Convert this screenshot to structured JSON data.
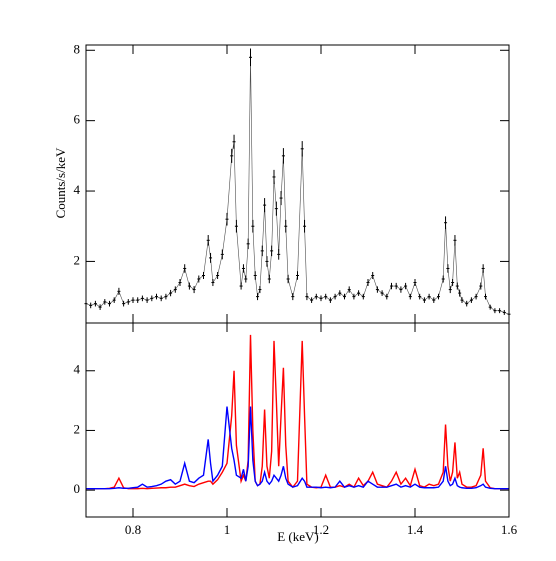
{
  "chart_data": [
    {
      "type": "line",
      "ylabel": "Counts/s/keV",
      "x": [
        0.7,
        0.71,
        0.72,
        0.73,
        0.74,
        0.75,
        0.76,
        0.77,
        0.78,
        0.79,
        0.8,
        0.81,
        0.82,
        0.83,
        0.84,
        0.85,
        0.86,
        0.87,
        0.88,
        0.89,
        0.9,
        0.91,
        0.92,
        0.93,
        0.94,
        0.95,
        0.96,
        0.965,
        0.97,
        0.98,
        0.99,
        1.0,
        1.01,
        1.015,
        1.02,
        1.03,
        1.035,
        1.04,
        1.045,
        1.05,
        1.055,
        1.06,
        1.065,
        1.07,
        1.075,
        1.08,
        1.085,
        1.09,
        1.095,
        1.1,
        1.105,
        1.11,
        1.115,
        1.12,
        1.125,
        1.13,
        1.14,
        1.15,
        1.16,
        1.165,
        1.17,
        1.18,
        1.19,
        1.2,
        1.21,
        1.22,
        1.23,
        1.24,
        1.25,
        1.26,
        1.27,
        1.28,
        1.29,
        1.3,
        1.31,
        1.32,
        1.33,
        1.34,
        1.35,
        1.36,
        1.37,
        1.38,
        1.39,
        1.4,
        1.41,
        1.42,
        1.43,
        1.44,
        1.45,
        1.46,
        1.465,
        1.47,
        1.475,
        1.48,
        1.485,
        1.49,
        1.495,
        1.5,
        1.51,
        1.52,
        1.53,
        1.54,
        1.545,
        1.55,
        1.56,
        1.57,
        1.58,
        1.59,
        1.6
      ],
      "series": [
        {
          "color": "#000000",
          "values": [
            0.8,
            0.75,
            0.8,
            0.7,
            0.85,
            0.8,
            0.9,
            1.15,
            0.8,
            0.85,
            0.9,
            0.9,
            0.95,
            0.9,
            0.95,
            1.0,
            0.95,
            1.0,
            1.1,
            1.2,
            1.4,
            1.8,
            1.3,
            1.2,
            1.5,
            1.6,
            2.6,
            2.1,
            1.4,
            1.6,
            2.2,
            3.2,
            5.0,
            5.4,
            3.0,
            1.3,
            1.8,
            1.5,
            2.5,
            7.8,
            3.0,
            1.6,
            1.0,
            1.2,
            2.3,
            3.6,
            2.0,
            1.5,
            2.3,
            4.4,
            3.5,
            2.2,
            3.8,
            5.0,
            3.0,
            1.5,
            1.0,
            1.6,
            5.2,
            3.0,
            1.0,
            0.9,
            1.0,
            0.95,
            1.0,
            0.9,
            1.0,
            1.1,
            1.0,
            1.2,
            1.0,
            1.1,
            1.0,
            1.4,
            1.6,
            1.2,
            1.1,
            1.0,
            1.3,
            1.3,
            1.2,
            1.3,
            1.0,
            1.4,
            1.0,
            0.9,
            1.0,
            0.9,
            1.0,
            1.5,
            3.1,
            1.8,
            1.2,
            1.4,
            2.6,
            1.3,
            1.1,
            0.9,
            0.8,
            0.9,
            1.0,
            1.3,
            1.8,
            1.0,
            0.7,
            0.6,
            0.6,
            0.55,
            0.5
          ],
          "errors": [
            0.08,
            0.08,
            0.08,
            0.08,
            0.08,
            0.08,
            0.08,
            0.1,
            0.08,
            0.08,
            0.08,
            0.08,
            0.08,
            0.08,
            0.08,
            0.08,
            0.08,
            0.08,
            0.09,
            0.09,
            0.1,
            0.12,
            0.1,
            0.1,
            0.1,
            0.1,
            0.15,
            0.14,
            0.1,
            0.1,
            0.14,
            0.18,
            0.2,
            0.2,
            0.18,
            0.1,
            0.12,
            0.1,
            0.15,
            0.25,
            0.18,
            0.12,
            0.1,
            0.1,
            0.15,
            0.2,
            0.15,
            0.12,
            0.15,
            0.2,
            0.2,
            0.15,
            0.2,
            0.22,
            0.18,
            0.12,
            0.1,
            0.12,
            0.22,
            0.18,
            0.1,
            0.08,
            0.08,
            0.08,
            0.08,
            0.08,
            0.08,
            0.08,
            0.08,
            0.09,
            0.08,
            0.08,
            0.08,
            0.1,
            0.1,
            0.09,
            0.08,
            0.08,
            0.09,
            0.09,
            0.09,
            0.09,
            0.08,
            0.1,
            0.08,
            0.08,
            0.08,
            0.08,
            0.08,
            0.1,
            0.18,
            0.12,
            0.1,
            0.1,
            0.15,
            0.1,
            0.1,
            0.08,
            0.08,
            0.08,
            0.08,
            0.1,
            0.12,
            0.08,
            0.07,
            0.07,
            0.07,
            0.07,
            0.07
          ]
        }
      ],
      "xlim": [
        0.7,
        1.6
      ],
      "ylim": [
        0.25,
        8.15
      ],
      "xticks": [
        0.8,
        1,
        1.2,
        1.4,
        1.6
      ],
      "yticks": [
        2,
        4,
        6,
        8
      ]
    },
    {
      "type": "line",
      "xlabel": "E (keV)",
      "x": [
        0.7,
        0.71,
        0.72,
        0.73,
        0.74,
        0.75,
        0.76,
        0.77,
        0.78,
        0.79,
        0.8,
        0.81,
        0.82,
        0.83,
        0.84,
        0.85,
        0.86,
        0.87,
        0.88,
        0.89,
        0.9,
        0.91,
        0.92,
        0.93,
        0.94,
        0.95,
        0.96,
        0.965,
        0.97,
        0.98,
        0.99,
        1.0,
        1.01,
        1.015,
        1.02,
        1.03,
        1.035,
        1.04,
        1.045,
        1.05,
        1.055,
        1.06,
        1.065,
        1.07,
        1.075,
        1.08,
        1.085,
        1.09,
        1.095,
        1.1,
        1.105,
        1.11,
        1.115,
        1.12,
        1.125,
        1.13,
        1.14,
        1.15,
        1.16,
        1.165,
        1.17,
        1.18,
        1.19,
        1.2,
        1.21,
        1.22,
        1.23,
        1.24,
        1.25,
        1.26,
        1.27,
        1.28,
        1.29,
        1.3,
        1.31,
        1.32,
        1.33,
        1.34,
        1.35,
        1.36,
        1.37,
        1.38,
        1.39,
        1.4,
        1.41,
        1.42,
        1.43,
        1.44,
        1.45,
        1.46,
        1.465,
        1.47,
        1.475,
        1.48,
        1.485,
        1.49,
        1.495,
        1.5,
        1.51,
        1.52,
        1.53,
        1.54,
        1.545,
        1.55,
        1.56,
        1.57,
        1.58,
        1.59,
        1.6
      ],
      "series": [
        {
          "color": "#ff0000",
          "values": [
            0.05,
            0.05,
            0.05,
            0.05,
            0.05,
            0.06,
            0.1,
            0.4,
            0.08,
            0.05,
            0.05,
            0.05,
            0.06,
            0.05,
            0.06,
            0.07,
            0.08,
            0.08,
            0.1,
            0.1,
            0.15,
            0.2,
            0.15,
            0.12,
            0.2,
            0.25,
            0.3,
            0.3,
            0.2,
            0.35,
            0.6,
            0.9,
            2.5,
            4.0,
            1.5,
            0.3,
            0.5,
            0.3,
            1.0,
            5.2,
            2.0,
            0.3,
            0.15,
            0.2,
            0.8,
            2.7,
            0.8,
            0.4,
            1.3,
            5.0,
            3.0,
            0.8,
            2.5,
            4.1,
            1.5,
            0.3,
            0.1,
            0.3,
            5.0,
            2.5,
            0.2,
            0.1,
            0.08,
            0.1,
            0.5,
            0.1,
            0.1,
            0.15,
            0.1,
            0.2,
            0.1,
            0.4,
            0.15,
            0.3,
            0.6,
            0.2,
            0.15,
            0.1,
            0.3,
            0.6,
            0.2,
            0.4,
            0.15,
            0.7,
            0.15,
            0.1,
            0.2,
            0.15,
            0.2,
            0.6,
            2.2,
            0.8,
            0.3,
            0.6,
            1.6,
            0.4,
            0.6,
            0.2,
            0.1,
            0.1,
            0.15,
            0.5,
            1.4,
            0.3,
            0.08,
            0.05,
            0.05,
            0.05,
            0.05
          ]
        },
        {
          "color": "#0000ff",
          "values": [
            0.05,
            0.05,
            0.05,
            0.05,
            0.05,
            0.05,
            0.06,
            0.08,
            0.06,
            0.06,
            0.08,
            0.1,
            0.2,
            0.1,
            0.12,
            0.15,
            0.2,
            0.3,
            0.35,
            0.2,
            0.3,
            0.9,
            0.3,
            0.25,
            0.4,
            0.5,
            1.7,
            0.9,
            0.3,
            0.5,
            0.8,
            2.8,
            1.4,
            1.0,
            0.5,
            0.4,
            0.7,
            0.3,
            0.8,
            2.8,
            1.0,
            0.3,
            0.15,
            0.2,
            0.3,
            0.6,
            0.3,
            0.2,
            0.3,
            0.5,
            0.4,
            0.3,
            0.5,
            0.8,
            0.4,
            0.2,
            0.1,
            0.15,
            0.4,
            0.3,
            0.1,
            0.1,
            0.1,
            0.08,
            0.1,
            0.08,
            0.1,
            0.3,
            0.1,
            0.15,
            0.1,
            0.15,
            0.1,
            0.3,
            0.2,
            0.1,
            0.1,
            0.1,
            0.15,
            0.2,
            0.1,
            0.15,
            0.1,
            0.2,
            0.1,
            0.08,
            0.08,
            0.08,
            0.1,
            0.3,
            0.8,
            0.3,
            0.15,
            0.2,
            0.4,
            0.15,
            0.1,
            0.08,
            0.06,
            0.06,
            0.08,
            0.15,
            0.2,
            0.1,
            0.06,
            0.05,
            0.05,
            0.05,
            0.05
          ]
        }
      ],
      "xlim": [
        0.7,
        1.6
      ],
      "ylim": [
        -0.9,
        5.6
      ],
      "xticks": [
        0.8,
        1,
        1.2,
        1.4,
        1.6
      ],
      "yticks": [
        0,
        2,
        4
      ]
    }
  ]
}
